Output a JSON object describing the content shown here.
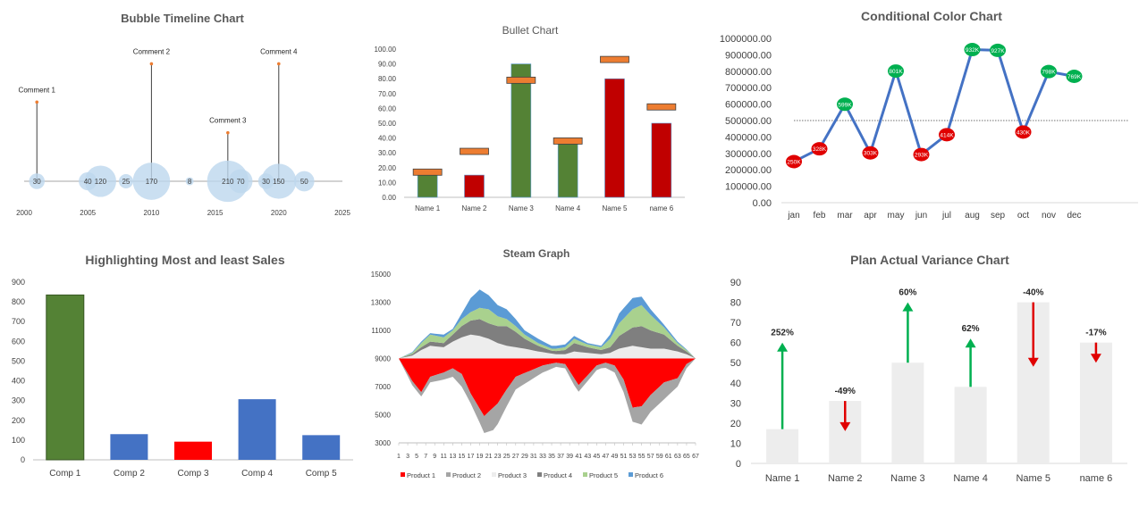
{
  "chart_data": [
    {
      "type": "bubble-timeline",
      "title": "Bubble Timeline Chart",
      "xlim": [
        2000,
        2025
      ],
      "x_ticks": [
        "2000",
        "2005",
        "2010",
        "2015",
        "2020",
        "2025"
      ],
      "bubbles": [
        {
          "x": 2001,
          "size": 30,
          "label": "30"
        },
        {
          "x": 2005,
          "size": 40,
          "label": "40"
        },
        {
          "x": 2006,
          "size": 120,
          "label": "120"
        },
        {
          "x": 2008,
          "size": 25,
          "label": "25"
        },
        {
          "x": 2010,
          "size": 170,
          "label": "170"
        },
        {
          "x": 2013,
          "size": 8,
          "label": "8"
        },
        {
          "x": 2016,
          "size": 210,
          "label": "210"
        },
        {
          "x": 2017,
          "size": 70,
          "label": "70"
        },
        {
          "x": 2019,
          "size": 30,
          "label": "30"
        },
        {
          "x": 2020,
          "size": 150,
          "label": "150"
        },
        {
          "x": 2022,
          "size": 50,
          "label": "50"
        }
      ],
      "comments": [
        {
          "x": 2001,
          "height": 0.62,
          "label": "Comment 1"
        },
        {
          "x": 2010,
          "height": 0.92,
          "label": "Comment 2"
        },
        {
          "x": 2016,
          "height": 0.38,
          "label": "Comment 3"
        },
        {
          "x": 2020,
          "height": 0.92,
          "label": "Comment 4"
        }
      ],
      "colors": {
        "bubble": "#bdd7ee",
        "line": "#404040",
        "marker": "#ed7d31"
      }
    },
    {
      "type": "bullet",
      "title": "Bullet Chart",
      "categories": [
        "Name 1",
        "Name 2",
        "Name 3",
        "Name 4",
        "Name 5",
        "name 6"
      ],
      "values": [
        15,
        15,
        90,
        37,
        80,
        50
      ],
      "targets": [
        17,
        31,
        79,
        38,
        93,
        61
      ],
      "bar_colors": [
        "#548235",
        "#c00000",
        "#548235",
        "#548235",
        "#c00000",
        "#c00000"
      ],
      "ylim": [
        0,
        100
      ],
      "y_ticks": [
        "0.00",
        "10.00",
        "20.00",
        "30.00",
        "40.00",
        "50.00",
        "60.00",
        "70.00",
        "80.00",
        "90.00",
        "100.00"
      ],
      "colors": {
        "target": "#ed7d31"
      }
    },
    {
      "type": "line",
      "title": "Conditional Color Chart",
      "categories": [
        "jan",
        "feb",
        "mar",
        "apr",
        "may",
        "jun",
        "jul",
        "aug",
        "sep",
        "oct",
        "nov",
        "dec"
      ],
      "values": [
        250000,
        328000,
        599000,
        303000,
        801000,
        293000,
        414000,
        932000,
        927000,
        430000,
        798000,
        769000
      ],
      "point_labels": [
        "250K",
        "328K",
        "599K",
        "303K",
        "801K",
        "293K",
        "414K",
        "932K",
        "927K",
        "430K",
        "798K",
        "769K"
      ],
      "threshold": 500000,
      "ylim": [
        0,
        1000000
      ],
      "y_ticks": [
        "0.00",
        "100000.00",
        "200000.00",
        "300000.00",
        "400000.00",
        "500000.00",
        "600000.00",
        "700000.00",
        "800000.00",
        "900000.00",
        "1000000.00"
      ],
      "colors": {
        "line": "#4472c4",
        "above": "#00b050",
        "below": "#e00000"
      }
    },
    {
      "type": "bar",
      "title": "Highlighting Most and  least Sales",
      "categories": [
        "Comp 1",
        "Comp 2",
        "Comp 3",
        "Comp 4",
        "Comp 5"
      ],
      "values": [
        835,
        130,
        92,
        307,
        125
      ],
      "bar_colors": [
        "#548235",
        "#4472c4",
        "#ff0000",
        "#4472c4",
        "#4472c4"
      ],
      "ylim": [
        0,
        900
      ],
      "y_ticks": [
        "0",
        "100",
        "200",
        "300",
        "400",
        "500",
        "600",
        "700",
        "800",
        "900"
      ]
    },
    {
      "type": "area",
      "subtype": "streamgraph",
      "title": "Steam Graph",
      "x_count": 67,
      "x_ticks": [
        "1",
        "3",
        "5",
        "7",
        "9",
        "11",
        "13",
        "15",
        "17",
        "19",
        "21",
        "23",
        "25",
        "27",
        "29",
        "31",
        "33",
        "35",
        "37",
        "39",
        "41",
        "43",
        "45",
        "47",
        "49",
        "51",
        "53",
        "55",
        "57",
        "59",
        "61",
        "63",
        "65",
        "67"
      ],
      "ylim": [
        3000,
        15000
      ],
      "y_ticks": [
        "3000",
        "5000",
        "7000",
        "9000",
        "11000",
        "13000",
        "15000"
      ],
      "baseline": 9000,
      "series": [
        {
          "name": "Product 1",
          "color": "#ff0000",
          "side": "below",
          "keyframes": [
            [
              1,
              0
            ],
            [
              4,
              1600
            ],
            [
              6,
              2400
            ],
            [
              8,
              1300
            ],
            [
              11,
              1000
            ],
            [
              13,
              700
            ],
            [
              15,
              1100
            ],
            [
              17,
              2500
            ],
            [
              20,
              4100
            ],
            [
              23,
              3200
            ],
            [
              25,
              2200
            ],
            [
              27,
              1300
            ],
            [
              30,
              900
            ],
            [
              33,
              500
            ],
            [
              36,
              300
            ],
            [
              38,
              400
            ],
            [
              40,
              1400
            ],
            [
              41,
              1900
            ],
            [
              43,
              1200
            ],
            [
              45,
              500
            ],
            [
              47,
              300
            ],
            [
              49,
              500
            ],
            [
              51,
              1500
            ],
            [
              53,
              3500
            ],
            [
              55,
              3400
            ],
            [
              57,
              2600
            ],
            [
              60,
              1700
            ],
            [
              63,
              1400
            ],
            [
              65,
              400
            ],
            [
              67,
              0
            ]
          ]
        },
        {
          "name": "Product 2",
          "color": "#a5a5a5",
          "side": "below",
          "keyframes": [
            [
              1,
              0
            ],
            [
              4,
              300
            ],
            [
              6,
              300
            ],
            [
              8,
              400
            ],
            [
              11,
              500
            ],
            [
              13,
              600
            ],
            [
              15,
              900
            ],
            [
              17,
              700
            ],
            [
              19,
              1000
            ],
            [
              22,
              1600
            ],
            [
              25,
              1200
            ],
            [
              27,
              900
            ],
            [
              30,
              700
            ],
            [
              33,
              500
            ],
            [
              36,
              300
            ],
            [
              38,
              300
            ],
            [
              40,
              500
            ],
            [
              43,
              400
            ],
            [
              46,
              300
            ],
            [
              49,
              500
            ],
            [
              51,
              900
            ],
            [
              53,
              1000
            ],
            [
              55,
              1300
            ],
            [
              57,
              1200
            ],
            [
              60,
              1200
            ],
            [
              63,
              600
            ],
            [
              65,
              300
            ],
            [
              67,
              0
            ]
          ]
        },
        {
          "name": "Product 3",
          "color": "#ededed",
          "side": "above",
          "keyframes": [
            [
              1,
              0
            ],
            [
              4,
              200
            ],
            [
              6,
              600
            ],
            [
              8,
              900
            ],
            [
              11,
              800
            ],
            [
              13,
              1200
            ],
            [
              15,
              1500
            ],
            [
              17,
              1700
            ],
            [
              19,
              1600
            ],
            [
              21,
              1400
            ],
            [
              23,
              1100
            ],
            [
              25,
              900
            ],
            [
              27,
              800
            ],
            [
              29,
              700
            ],
            [
              32,
              500
            ],
            [
              36,
              300
            ],
            [
              38,
              300
            ],
            [
              40,
              500
            ],
            [
              43,
              400
            ],
            [
              46,
              300
            ],
            [
              48,
              400
            ],
            [
              50,
              700
            ],
            [
              53,
              900
            ],
            [
              55,
              800
            ],
            [
              57,
              700
            ],
            [
              60,
              700
            ],
            [
              63,
              500
            ],
            [
              65,
              300
            ],
            [
              67,
              0
            ]
          ]
        },
        {
          "name": "Product 4",
          "color": "#7f7f7f",
          "side": "above",
          "keyframes": [
            [
              1,
              0
            ],
            [
              4,
              100
            ],
            [
              6,
              200
            ],
            [
              8,
              300
            ],
            [
              11,
              300
            ],
            [
              13,
              500
            ],
            [
              15,
              800
            ],
            [
              17,
              1000
            ],
            [
              19,
              1200
            ],
            [
              21,
              1100
            ],
            [
              23,
              1200
            ],
            [
              25,
              1400
            ],
            [
              27,
              1100
            ],
            [
              29,
              700
            ],
            [
              32,
              400
            ],
            [
              35,
              200
            ],
            [
              38,
              300
            ],
            [
              40,
              600
            ],
            [
              43,
              400
            ],
            [
              46,
              300
            ],
            [
              48,
              400
            ],
            [
              50,
              900
            ],
            [
              53,
              1300
            ],
            [
              55,
              1500
            ],
            [
              57,
              1300
            ],
            [
              60,
              1000
            ],
            [
              63,
              400
            ],
            [
              65,
              200
            ],
            [
              67,
              0
            ]
          ]
        },
        {
          "name": "Product 5",
          "color": "#a9d18e",
          "side": "above",
          "keyframes": [
            [
              1,
              0
            ],
            [
              4,
              100
            ],
            [
              6,
              300
            ],
            [
              8,
              500
            ],
            [
              11,
              400
            ],
            [
              13,
              300
            ],
            [
              15,
              500
            ],
            [
              17,
              600
            ],
            [
              19,
              800
            ],
            [
              21,
              1000
            ],
            [
              23,
              700
            ],
            [
              25,
              500
            ],
            [
              27,
              400
            ],
            [
              29,
              300
            ],
            [
              32,
              200
            ],
            [
              35,
              150
            ],
            [
              38,
              200
            ],
            [
              40,
              300
            ],
            [
              43,
              200
            ],
            [
              46,
              200
            ],
            [
              48,
              600
            ],
            [
              50,
              900
            ],
            [
              53,
              1300
            ],
            [
              55,
              1500
            ],
            [
              57,
              1100
            ],
            [
              60,
              500
            ],
            [
              63,
              200
            ],
            [
              65,
              100
            ],
            [
              67,
              0
            ]
          ]
        },
        {
          "name": "Product 6",
          "color": "#5b9bd5",
          "side": "above",
          "keyframes": [
            [
              1,
              0
            ],
            [
              4,
              50
            ],
            [
              6,
              100
            ],
            [
              8,
              100
            ],
            [
              11,
              200
            ],
            [
              13,
              100
            ],
            [
              15,
              400
            ],
            [
              17,
              1000
            ],
            [
              19,
              1300
            ],
            [
              21,
              1000
            ],
            [
              23,
              800
            ],
            [
              25,
              700
            ],
            [
              27,
              500
            ],
            [
              29,
              300
            ],
            [
              32,
              300
            ],
            [
              35,
              200
            ],
            [
              38,
              200
            ],
            [
              40,
              200
            ],
            [
              43,
              100
            ],
            [
              46,
              100
            ],
            [
              48,
              300
            ],
            [
              50,
              700
            ],
            [
              53,
              800
            ],
            [
              55,
              600
            ],
            [
              57,
              400
            ],
            [
              60,
              200
            ],
            [
              63,
              100
            ],
            [
              65,
              50
            ],
            [
              67,
              0
            ]
          ]
        }
      ]
    },
    {
      "type": "bar",
      "subtype": "variance",
      "title": "Plan Actual Variance Chart",
      "categories": [
        "Name 1",
        "Name 2",
        "Name 3",
        "Name 4",
        "Name 5",
        "name 6"
      ],
      "plan": [
        17,
        31,
        50,
        38,
        80,
        60
      ],
      "actual": [
        60,
        16,
        80,
        62,
        48,
        50
      ],
      "variance_labels": [
        "252%",
        "-49%",
        "60%",
        "62%",
        "-40%",
        "-17%"
      ],
      "ylim": [
        0,
        90
      ],
      "y_ticks": [
        "0",
        "10",
        "20",
        "30",
        "40",
        "50",
        "60",
        "70",
        "80",
        "90"
      ],
      "colors": {
        "bar": "#ededed",
        "up": "#00b050",
        "down": "#e00000"
      }
    }
  ]
}
